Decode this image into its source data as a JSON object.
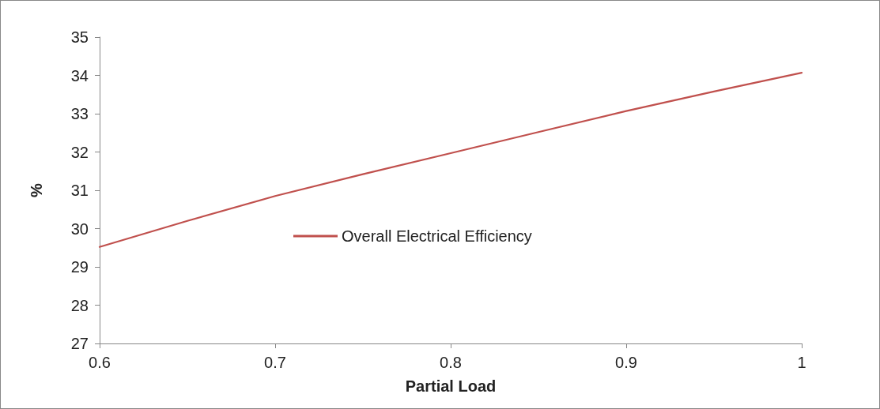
{
  "chart_data": {
    "type": "line",
    "xlabel": "Partial Load",
    "ylabel": "%",
    "x": [
      0.6,
      0.65,
      0.7,
      0.75,
      0.8,
      0.85,
      0.9,
      0.95,
      1.0
    ],
    "series": [
      {
        "name": "Overall Electrical Efficiency",
        "color": "#c0504d",
        "values": [
          29.52,
          30.2,
          30.85,
          31.42,
          31.97,
          32.52,
          33.07,
          33.58,
          34.07
        ]
      }
    ],
    "xlim": [
      0.6,
      1
    ],
    "xticks": [
      0.6,
      0.7,
      0.8,
      0.9,
      1
    ],
    "ylim": [
      27,
      35
    ],
    "yticks": [
      27,
      28,
      29,
      30,
      31,
      32,
      33,
      34,
      35
    ],
    "grid": false,
    "legend": "left",
    "marker": "none",
    "line_style": "solid"
  }
}
